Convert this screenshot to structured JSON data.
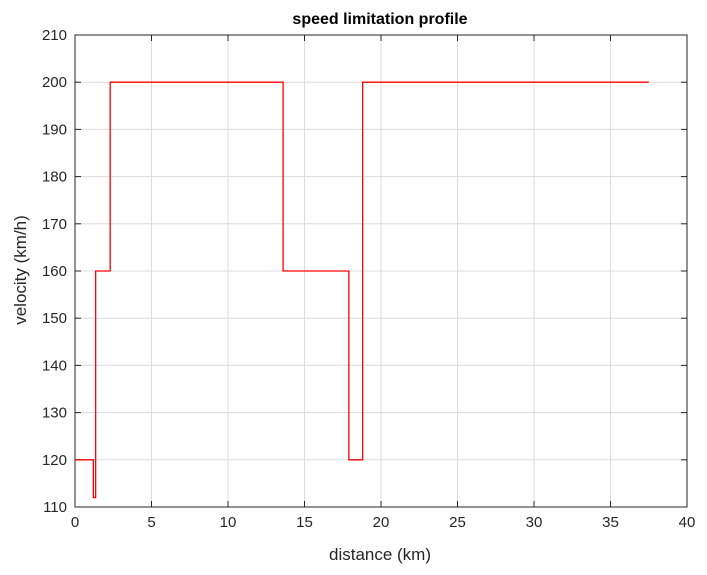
{
  "chart_data": {
    "type": "line",
    "title": "speed limitation profile",
    "xlabel": "distance (km)",
    "ylabel": "velocity (km/h)",
    "xlim": [
      0,
      40
    ],
    "ylim": [
      110,
      210
    ],
    "xticks": [
      0,
      5,
      10,
      15,
      20,
      25,
      30,
      35,
      40
    ],
    "yticks": [
      110,
      120,
      130,
      140,
      150,
      160,
      170,
      180,
      190,
      200,
      210
    ],
    "grid": true,
    "series": [
      {
        "color": "#ff0000",
        "x": [
          0,
          1.2,
          1.2,
          1.35,
          1.35,
          2.3,
          2.3,
          13.6,
          13.6,
          17.9,
          17.9,
          18.8,
          18.8,
          37.5
        ],
        "y": [
          120,
          120,
          112,
          112,
          160,
          160,
          200,
          200,
          160,
          160,
          120,
          120,
          200,
          200
        ]
      }
    ]
  },
  "colors": {
    "line": "#ff0000",
    "grid": "#dcdcdc",
    "axes": "#262626"
  }
}
